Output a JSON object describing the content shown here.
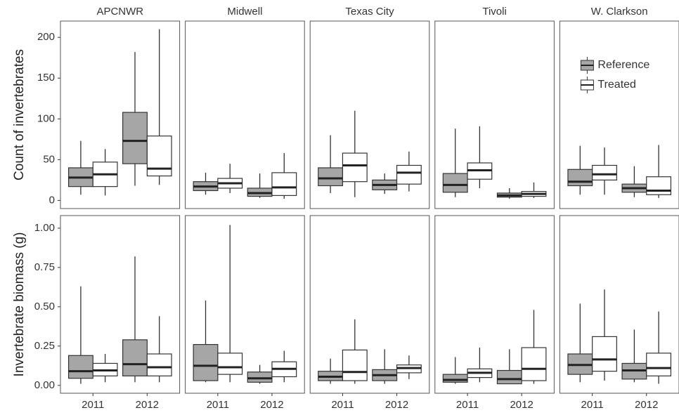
{
  "chart_data": {
    "type": "box",
    "panels": [
      "APCNWR",
      "Midwell",
      "Texas City",
      "Tivoli",
      "W. Clarkson"
    ],
    "categories": [
      "2011",
      "2012"
    ],
    "series": [
      {
        "name": "Reference",
        "color": "#a6a6a6"
      },
      {
        "name": "Treated",
        "color": "#ffffff"
      }
    ],
    "legend": "top-right",
    "rows": [
      {
        "y_label": "Count of invertebrates",
        "ylim": [
          -10,
          220
        ],
        "yticks": [
          0,
          50,
          100,
          150,
          200
        ],
        "values": [
          [
            [
              [
                7,
                17,
                28,
                40,
                73
              ],
              [
                18,
                45,
                73,
                108,
                182
              ]
            ],
            [
              [
                6,
                17,
                32,
                47,
                63
              ],
              [
                19,
                30,
                39,
                79,
                210
              ]
            ]
          ],
          [
            [
              [
                7,
                12,
                17,
                23,
                34
              ],
              [
                3,
                5,
                9,
                15,
                33
              ]
            ],
            [
              [
                9,
                15,
                21,
                27,
                45
              ],
              [
                2,
                6,
                16,
                34,
                58
              ]
            ]
          ],
          [
            [
              [
                9,
                18,
                27,
                40,
                80
              ],
              [
                8,
                13,
                19,
                25,
                33
              ]
            ],
            [
              [
                4,
                23,
                43,
                58,
                110
              ],
              [
                11,
                20,
                34,
                43,
                60
              ]
            ]
          ],
          [
            [
              [
                4,
                10,
                19,
                33,
                88
              ],
              [
                2,
                4,
                6,
                9,
                15
              ]
            ],
            [
              [
                15,
                26,
                37,
                46,
                91
              ],
              [
                3,
                5,
                8,
                11,
                22
              ]
            ]
          ],
          [
            [
              [
                7,
                18,
                23,
                38,
                67
              ],
              [
                4,
                10,
                15,
                20,
                42
              ]
            ],
            [
              [
                7,
                25,
                32,
                43,
                65
              ],
              [
                3,
                7,
                12,
                29,
                68
              ]
            ]
          ]
        ]
      },
      {
        "y_label": "Invertebrate biomass (g)",
        "ylim": [
          -0.05,
          1.08
        ],
        "yticks": [
          {
            "value": 0,
            "label": "0.00"
          },
          {
            "value": 0.25,
            "label": "0.25"
          },
          {
            "value": 0.5,
            "label": "0.50"
          },
          {
            "value": 0.75,
            "label": "0.75"
          },
          {
            "value": 1,
            "label": "1.00"
          }
        ],
        "values": [
          [
            [
              [
                0.01,
                0.045,
                0.09,
                0.19,
                0.63
              ],
              [
                0.02,
                0.06,
                0.135,
                0.29,
                0.82
              ]
            ],
            [
              [
                0.02,
                0.06,
                0.095,
                0.14,
                0.2
              ],
              [
                0.02,
                0.06,
                0.115,
                0.2,
                0.44
              ]
            ]
          ],
          [
            [
              [
                0.02,
                0.03,
                0.125,
                0.26,
                0.54
              ],
              [
                0.01,
                0.02,
                0.045,
                0.085,
                0.13
              ]
            ],
            [
              [
                0.02,
                0.07,
                0.115,
                0.205,
                1.02
              ],
              [
                0.02,
                0.055,
                0.105,
                0.15,
                0.22
              ]
            ]
          ],
          [
            [
              [
                0.01,
                0.03,
                0.055,
                0.09,
                0.17
              ],
              [
                0.01,
                0.03,
                0.065,
                0.1,
                0.23
              ]
            ],
            [
              [
                0.01,
                0.03,
                0.085,
                0.225,
                0.42
              ],
              [
                0.04,
                0.08,
                0.11,
                0.13,
                0.19
              ]
            ]
          ],
          [
            [
              [
                0.01,
                0.02,
                0.035,
                0.07,
                0.18
              ],
              [
                0.01,
                0.01,
                0.04,
                0.095,
                0.23
              ]
            ],
            [
              [
                0.02,
                0.05,
                0.08,
                0.105,
                0.24
              ],
              [
                0.01,
                0.03,
                0.105,
                0.24,
                0.48
              ]
            ]
          ],
          [
            [
              [
                0.02,
                0.07,
                0.13,
                0.2,
                0.52
              ],
              [
                0.02,
                0.04,
                0.095,
                0.14,
                0.355
              ]
            ],
            [
              [
                0.03,
                0.09,
                0.165,
                0.31,
                0.61
              ],
              [
                0.01,
                0.06,
                0.11,
                0.205,
                0.47
              ]
            ]
          ]
        ]
      }
    ]
  }
}
